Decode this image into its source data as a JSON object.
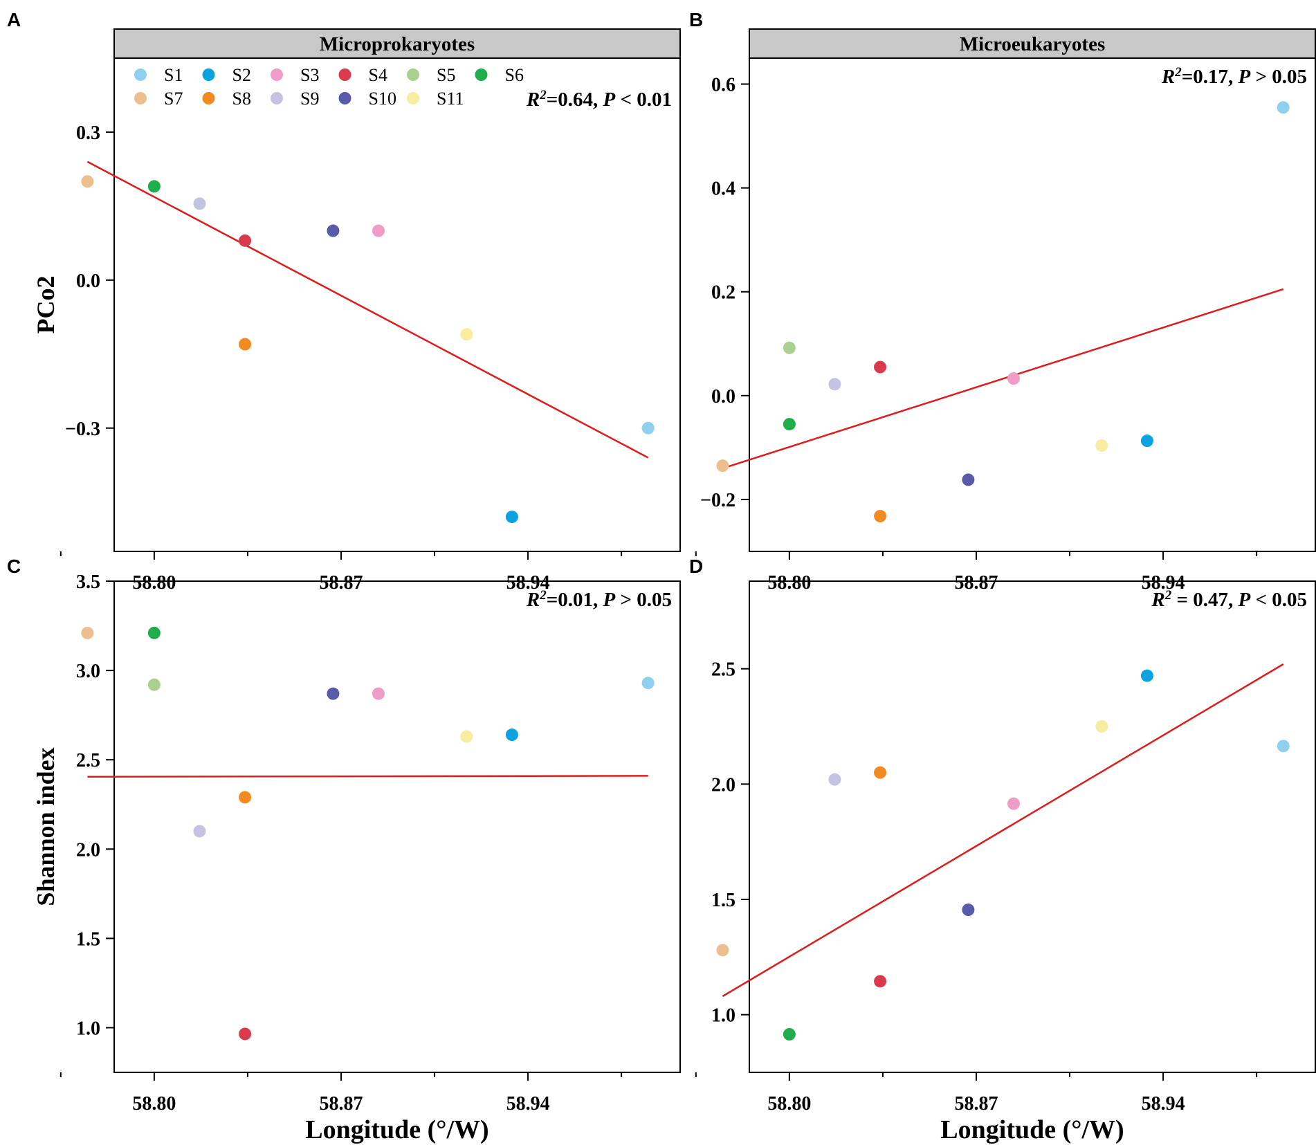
{
  "colors": {
    "S1": "#8fd0ef",
    "S2": "#0aa2e0",
    "S3": "#ef9cc6",
    "S4": "#d93a4d",
    "S5": "#a9d18e",
    "S6": "#21ad4b",
    "S7": "#ebc08e",
    "S8": "#f28a22",
    "S9": "#c5c3e2",
    "S10": "#5a5aab",
    "S11": "#f6eda0",
    "fit_line": "#dd1c1c",
    "strip": "#c8c8c8"
  },
  "legend": [
    "S1",
    "S2",
    "S3",
    "S4",
    "S5",
    "S6",
    "S7",
    "S8",
    "S9",
    "S10",
    "S11"
  ],
  "x_axis_label": "Longitude (°/W)",
  "chart_data": [
    {
      "id": "A",
      "panel_letter": "A",
      "type": "scatter",
      "title": "Microprokaryotes",
      "ylabel": "PCo2",
      "xlim": [
        58.785,
        58.997
      ],
      "ylim": [
        -0.55,
        0.45
      ],
      "xticks": [
        "58.80",
        "58.87",
        "58.94"
      ],
      "yticks": [
        "0.3",
        "0.0",
        "−0.3"
      ],
      "ytick_values": [
        0.3,
        0.0,
        -0.3
      ],
      "stat": {
        "r2_label": "R",
        "sup": "2",
        "r2_text": "=0.64, ",
        "p_label": "P",
        "p_text": " < 0.01"
      },
      "fit": {
        "x": [
          58.775,
          58.985
        ],
        "y": [
          0.24,
          -0.36
        ]
      },
      "points": [
        {
          "site": "S1",
          "x": 58.985,
          "y": -0.3
        },
        {
          "site": "S2",
          "x": 58.934,
          "y": -0.48
        },
        {
          "site": "S3",
          "x": 58.884,
          "y": 0.1
        },
        {
          "site": "S4",
          "x": 58.834,
          "y": 0.08
        },
        {
          "site": "S5",
          "x": 58.8,
          "y": 0.19
        },
        {
          "site": "S6",
          "x": 58.8,
          "y": 0.19
        },
        {
          "site": "S7",
          "x": 58.775,
          "y": 0.2
        },
        {
          "site": "S8",
          "x": 58.834,
          "y": -0.13
        },
        {
          "site": "S9",
          "x": 58.817,
          "y": 0.155
        },
        {
          "site": "S10",
          "x": 58.867,
          "y": 0.1
        },
        {
          "site": "S11",
          "x": 58.917,
          "y": -0.11
        }
      ]
    },
    {
      "id": "B",
      "panel_letter": "B",
      "type": "scatter",
      "title": "Microeukaryotes",
      "ylabel": "",
      "xlim": [
        58.785,
        58.997
      ],
      "ylim": [
        -0.3,
        0.65
      ],
      "xticks": [
        "58.80",
        "58.87",
        "58.94"
      ],
      "yticks": [
        "0.6",
        "0.4",
        "0.2",
        "0.0",
        "−0.2"
      ],
      "ytick_values": [
        0.6,
        0.4,
        0.2,
        0.0,
        -0.2
      ],
      "stat": {
        "r2_label": "R",
        "sup": "2",
        "r2_text": "=0.17, ",
        "p_label": "P",
        "p_text": " > 0.05"
      },
      "fit": {
        "x": [
          58.775,
          58.985
        ],
        "y": [
          -0.14,
          0.205
        ]
      },
      "points": [
        {
          "site": "S1",
          "x": 58.985,
          "y": 0.555
        },
        {
          "site": "S2",
          "x": 58.934,
          "y": -0.087
        },
        {
          "site": "S3",
          "x": 58.884,
          "y": 0.033
        },
        {
          "site": "S4",
          "x": 58.834,
          "y": 0.055
        },
        {
          "site": "S5",
          "x": 58.8,
          "y": 0.092
        },
        {
          "site": "S6",
          "x": 58.8,
          "y": -0.055
        },
        {
          "site": "S7",
          "x": 58.775,
          "y": -0.135
        },
        {
          "site": "S8",
          "x": 58.834,
          "y": -0.232
        },
        {
          "site": "S9",
          "x": 58.817,
          "y": 0.022
        },
        {
          "site": "S10",
          "x": 58.867,
          "y": -0.162
        },
        {
          "site": "S11",
          "x": 58.917,
          "y": -0.096
        }
      ]
    },
    {
      "id": "C",
      "panel_letter": "C",
      "type": "scatter",
      "title": "",
      "ylabel": "Shannon index",
      "xlim": [
        58.785,
        58.997
      ],
      "ylim": [
        0.75,
        3.5
      ],
      "xticks": [
        "58.80",
        "58.87",
        "58.94"
      ],
      "yticks": [
        "3.5",
        "3.0",
        "2.5",
        "2.0",
        "1.5",
        "1.0"
      ],
      "ytick_values": [
        3.5,
        3.0,
        2.5,
        2.0,
        1.5,
        1.0
      ],
      "stat": {
        "r2_label": "R",
        "sup": "2",
        "r2_text": "=0.01, ",
        "p_label": "P",
        "p_text": " > 0.05"
      },
      "fit": {
        "x": [
          58.775,
          58.985
        ],
        "y": [
          2.405,
          2.41
        ]
      },
      "points": [
        {
          "site": "S1",
          "x": 58.985,
          "y": 2.93
        },
        {
          "site": "S2",
          "x": 58.934,
          "y": 2.64
        },
        {
          "site": "S3",
          "x": 58.884,
          "y": 2.87
        },
        {
          "site": "S4",
          "x": 58.834,
          "y": 0.965
        },
        {
          "site": "S5",
          "x": 58.8,
          "y": 2.92
        },
        {
          "site": "S6",
          "x": 58.8,
          "y": 3.21
        },
        {
          "site": "S7",
          "x": 58.775,
          "y": 3.21
        },
        {
          "site": "S8",
          "x": 58.834,
          "y": 2.29
        },
        {
          "site": "S9",
          "x": 58.817,
          "y": 2.1
        },
        {
          "site": "S10",
          "x": 58.867,
          "y": 2.87
        },
        {
          "site": "S11",
          "x": 58.917,
          "y": 2.63
        }
      ]
    },
    {
      "id": "D",
      "panel_letter": "D",
      "type": "scatter",
      "title": "",
      "ylabel": "",
      "xlim": [
        58.785,
        58.997
      ],
      "ylim": [
        0.75,
        2.88
      ],
      "xticks": [
        "58.80",
        "58.87",
        "58.94"
      ],
      "yticks": [
        "2.5",
        "2.0",
        "1.5",
        "1.0"
      ],
      "ytick_values": [
        2.5,
        2.0,
        1.5,
        1.0
      ],
      "stat": {
        "r2_label": "R",
        "sup": "2",
        "r2_text": " = 0.47, ",
        "p_label": "P",
        "p_text": " < 0.05"
      },
      "fit": {
        "x": [
          58.775,
          58.985
        ],
        "y": [
          1.08,
          2.52
        ]
      },
      "points": [
        {
          "site": "S1",
          "x": 58.985,
          "y": 2.165
        },
        {
          "site": "S2",
          "x": 58.934,
          "y": 2.47
        },
        {
          "site": "S3",
          "x": 58.884,
          "y": 1.915
        },
        {
          "site": "S4",
          "x": 58.834,
          "y": 1.145
        },
        {
          "site": "S6",
          "x": 58.8,
          "y": 0.915
        },
        {
          "site": "S7",
          "x": 58.775,
          "y": 1.28
        },
        {
          "site": "S8",
          "x": 58.834,
          "y": 2.05
        },
        {
          "site": "S9",
          "x": 58.817,
          "y": 2.02
        },
        {
          "site": "S10",
          "x": 58.867,
          "y": 1.455
        },
        {
          "site": "S11",
          "x": 58.917,
          "y": 2.25
        }
      ]
    }
  ]
}
